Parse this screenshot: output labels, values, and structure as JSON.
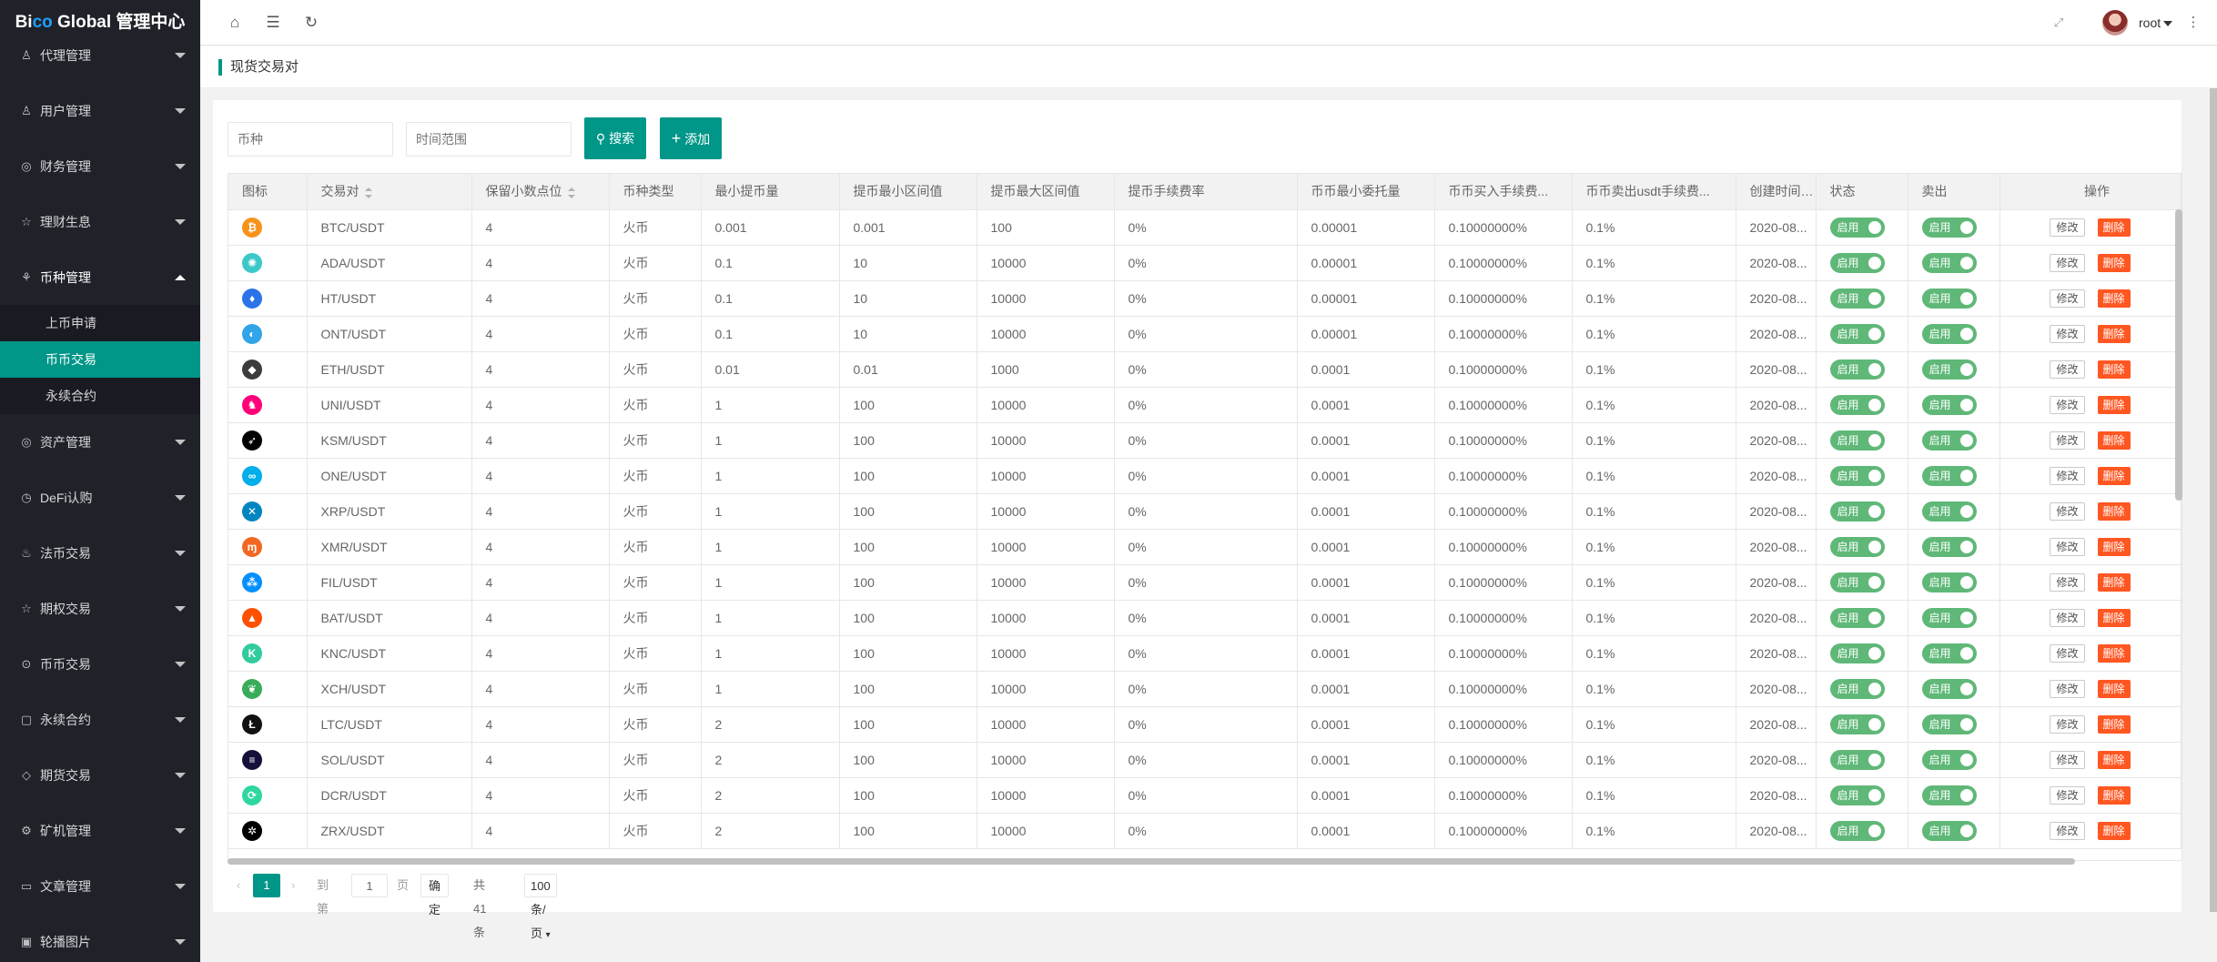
{
  "sidebar": {
    "logo_prefix": "Bi",
    "logo_blue": "co",
    "logo_suffix": " Global 管理中心",
    "items": [
      {
        "label": "代理管理",
        "icon": "user-icon"
      },
      {
        "label": "用户管理",
        "icon": "users-icon"
      },
      {
        "label": "财务管理",
        "icon": "money-icon"
      },
      {
        "label": "理财生息",
        "icon": "star-icon"
      },
      {
        "label": "币种管理",
        "icon": "cube-icon",
        "expanded": true,
        "children": [
          "上币申请",
          "币币交易",
          "永续合约"
        ],
        "active_child": "币币交易"
      },
      {
        "label": "资产管理",
        "icon": "coin-icon"
      },
      {
        "label": "DeFi认购",
        "icon": "clock-icon"
      },
      {
        "label": "法币交易",
        "icon": "fire-icon"
      },
      {
        "label": "期权交易",
        "icon": "star-outline-icon"
      },
      {
        "label": "币币交易",
        "icon": "circle-icon"
      },
      {
        "label": "永续合约",
        "icon": "file-icon"
      },
      {
        "label": "期货交易",
        "icon": "diamond-icon"
      },
      {
        "label": "矿机管理",
        "icon": "gear-icon"
      },
      {
        "label": "文章管理",
        "icon": "book-icon"
      },
      {
        "label": "轮播图片",
        "icon": "image-icon"
      }
    ]
  },
  "header": {
    "username": "root"
  },
  "breadcrumb": "现货交易对",
  "search": {
    "coin_placeholder": "币种",
    "time_placeholder": "时间范围",
    "search_label": "搜索",
    "add_label": "添加"
  },
  "table": {
    "headers": [
      "图标",
      "交易对",
      "保留小数点位",
      "币种类型",
      "最小提币量",
      "提币最小区间值",
      "提币最大区间值",
      "提币手续费率",
      "币币最小委托量",
      "币币买入手续费...",
      "币币卖出usdt手续费...",
      "创建时间...",
      "状态",
      "卖出",
      "操作"
    ],
    "switch_label": "启用",
    "edit_label": "修改",
    "delete_label": "删除",
    "rows": [
      {
        "icon": "btc-icon",
        "color": "#f7931a",
        "glyph": "₿",
        "pair": "BTC/USDT",
        "decimals": "4",
        "type": "火币",
        "min_withdraw": "0.001",
        "wd_min": "0.001",
        "wd_max": "100",
        "fee_rate": "0%",
        "min_order": "0.00001",
        "buy_fee": "0.10000000%",
        "sell_fee": "0.1%",
        "created": "2020-08..."
      },
      {
        "icon": "ada-icon",
        "color": "#3cc8c8",
        "glyph": "✺",
        "pair": "ADA/USDT",
        "decimals": "4",
        "type": "火币",
        "min_withdraw": "0.1",
        "wd_min": "10",
        "wd_max": "10000",
        "fee_rate": "0%",
        "min_order": "0.00001",
        "buy_fee": "0.10000000%",
        "sell_fee": "0.1%",
        "created": "2020-08..."
      },
      {
        "icon": "ht-icon",
        "color": "#2a73e8",
        "glyph": "♦",
        "pair": "HT/USDT",
        "decimals": "4",
        "type": "火币",
        "min_withdraw": "0.1",
        "wd_min": "10",
        "wd_max": "10000",
        "fee_rate": "0%",
        "min_order": "0.00001",
        "buy_fee": "0.10000000%",
        "sell_fee": "0.1%",
        "created": "2020-08..."
      },
      {
        "icon": "ont-icon",
        "color": "#32a4e8",
        "glyph": "◐",
        "pair": "ONT/USDT",
        "decimals": "4",
        "type": "火币",
        "min_withdraw": "0.1",
        "wd_min": "10",
        "wd_max": "10000",
        "fee_rate": "0%",
        "min_order": "0.00001",
        "buy_fee": "0.10000000%",
        "sell_fee": "0.1%",
        "created": "2020-08..."
      },
      {
        "icon": "eth-icon",
        "color": "#3c3c3d",
        "glyph": "◆",
        "pair": "ETH/USDT",
        "decimals": "4",
        "type": "火币",
        "min_withdraw": "0.01",
        "wd_min": "0.01",
        "wd_max": "1000",
        "fee_rate": "0%",
        "min_order": "0.0001",
        "buy_fee": "0.10000000%",
        "sell_fee": "0.1%",
        "created": "2020-08..."
      },
      {
        "icon": "uni-icon",
        "color": "#ff007a",
        "glyph": "♞",
        "pair": "UNI/USDT",
        "decimals": "4",
        "type": "火币",
        "min_withdraw": "1",
        "wd_min": "100",
        "wd_max": "10000",
        "fee_rate": "0%",
        "min_order": "0.0001",
        "buy_fee": "0.10000000%",
        "sell_fee": "0.1%",
        "created": "2020-08..."
      },
      {
        "icon": "ksm-icon",
        "color": "#000000",
        "glyph": "➶",
        "pair": "KSM/USDT",
        "decimals": "4",
        "type": "火币",
        "min_withdraw": "1",
        "wd_min": "100",
        "wd_max": "10000",
        "fee_rate": "0%",
        "min_order": "0.0001",
        "buy_fee": "0.10000000%",
        "sell_fee": "0.1%",
        "created": "2020-08..."
      },
      {
        "icon": "one-icon",
        "color": "#00aee9",
        "glyph": "∞",
        "pair": "ONE/USDT",
        "decimals": "4",
        "type": "火币",
        "min_withdraw": "1",
        "wd_min": "100",
        "wd_max": "10000",
        "fee_rate": "0%",
        "min_order": "0.0001",
        "buy_fee": "0.10000000%",
        "sell_fee": "0.1%",
        "created": "2020-08..."
      },
      {
        "icon": "xrp-icon",
        "color": "#0085c0",
        "glyph": "✕",
        "pair": "XRP/USDT",
        "decimals": "4",
        "type": "火币",
        "min_withdraw": "1",
        "wd_min": "100",
        "wd_max": "10000",
        "fee_rate": "0%",
        "min_order": "0.0001",
        "buy_fee": "0.10000000%",
        "sell_fee": "0.1%",
        "created": "2020-08..."
      },
      {
        "icon": "xmr-icon",
        "color": "#f26822",
        "glyph": "ɱ",
        "pair": "XMR/USDT",
        "decimals": "4",
        "type": "火币",
        "min_withdraw": "1",
        "wd_min": "100",
        "wd_max": "10000",
        "fee_rate": "0%",
        "min_order": "0.0001",
        "buy_fee": "0.10000000%",
        "sell_fee": "0.1%",
        "created": "2020-08..."
      },
      {
        "icon": "fil-icon",
        "color": "#0090ff",
        "glyph": "⁂",
        "pair": "FIL/USDT",
        "decimals": "4",
        "type": "火币",
        "min_withdraw": "1",
        "wd_min": "100",
        "wd_max": "10000",
        "fee_rate": "0%",
        "min_order": "0.0001",
        "buy_fee": "0.10000000%",
        "sell_fee": "0.1%",
        "created": "2020-08..."
      },
      {
        "icon": "bat-icon",
        "color": "#ff5000",
        "glyph": "▲",
        "pair": "BAT/USDT",
        "decimals": "4",
        "type": "火币",
        "min_withdraw": "1",
        "wd_min": "100",
        "wd_max": "10000",
        "fee_rate": "0%",
        "min_order": "0.0001",
        "buy_fee": "0.10000000%",
        "sell_fee": "0.1%",
        "created": "2020-08..."
      },
      {
        "icon": "knc-icon",
        "color": "#31cb9e",
        "glyph": "K",
        "pair": "KNC/USDT",
        "decimals": "4",
        "type": "火币",
        "min_withdraw": "1",
        "wd_min": "100",
        "wd_max": "10000",
        "fee_rate": "0%",
        "min_order": "0.0001",
        "buy_fee": "0.10000000%",
        "sell_fee": "0.1%",
        "created": "2020-08..."
      },
      {
        "icon": "xch-icon",
        "color": "#3aac59",
        "glyph": "❦",
        "pair": "XCH/USDT",
        "decimals": "4",
        "type": "火币",
        "min_withdraw": "1",
        "wd_min": "100",
        "wd_max": "10000",
        "fee_rate": "0%",
        "min_order": "0.0001",
        "buy_fee": "0.10000000%",
        "sell_fee": "0.1%",
        "created": "2020-08..."
      },
      {
        "icon": "ltc-icon",
        "color": "#111111",
        "glyph": "Ł",
        "pair": "LTC/USDT",
        "decimals": "4",
        "type": "火币",
        "min_withdraw": "2",
        "wd_min": "100",
        "wd_max": "10000",
        "fee_rate": "0%",
        "min_order": "0.0001",
        "buy_fee": "0.10000000%",
        "sell_fee": "0.1%",
        "created": "2020-08..."
      },
      {
        "icon": "sol-icon",
        "color": "#14103a",
        "glyph": "≡",
        "pair": "SOL/USDT",
        "decimals": "4",
        "type": "火币",
        "min_withdraw": "2",
        "wd_min": "100",
        "wd_max": "10000",
        "fee_rate": "0%",
        "min_order": "0.0001",
        "buy_fee": "0.10000000%",
        "sell_fee": "0.1%",
        "created": "2020-08..."
      },
      {
        "icon": "dcr-icon",
        "color": "#2ed6a1",
        "glyph": "⟳",
        "pair": "DCR/USDT",
        "decimals": "4",
        "type": "火币",
        "min_withdraw": "2",
        "wd_min": "100",
        "wd_max": "10000",
        "fee_rate": "0%",
        "min_order": "0.0001",
        "buy_fee": "0.10000000%",
        "sell_fee": "0.1%",
        "created": "2020-08..."
      },
      {
        "icon": "zrx-icon",
        "color": "#000000",
        "glyph": "✲",
        "pair": "ZRX/USDT",
        "decimals": "4",
        "type": "火币",
        "min_withdraw": "2",
        "wd_min": "100",
        "wd_max": "10000",
        "fee_rate": "0%",
        "min_order": "0.0001",
        "buy_fee": "0.10000000%",
        "sell_fee": "0.1%",
        "created": "2020-08..."
      }
    ]
  },
  "pagination": {
    "current": "1",
    "goto_label": "到第",
    "goto_value": "1",
    "page_label": "页",
    "confirm_label": "确定",
    "total_label": "共 41 条",
    "page_size": "100 条/页"
  },
  "colors": {
    "accent": "#009688",
    "danger": "#ff5722",
    "switch_on": "#5fb878",
    "sidebar": "#20222a"
  }
}
